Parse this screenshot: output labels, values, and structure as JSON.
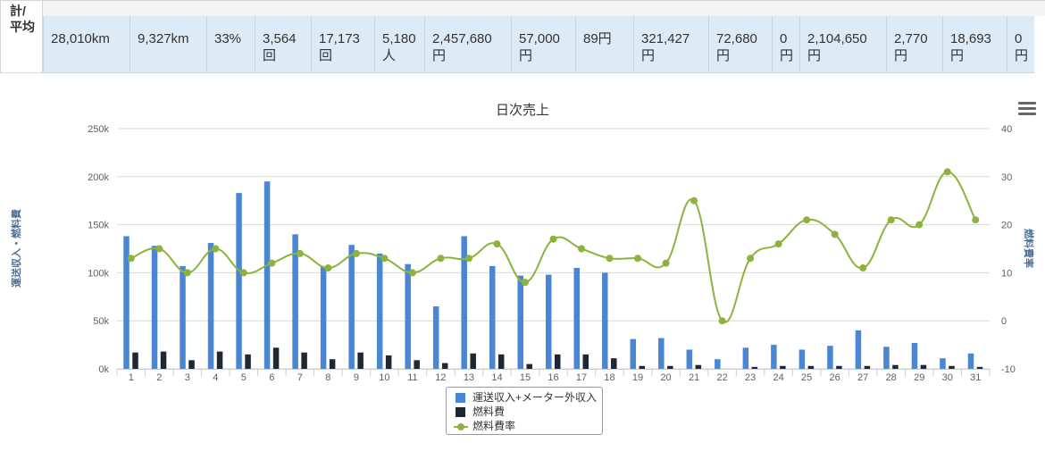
{
  "summary": {
    "row_label": "計/\n平均",
    "cells": [
      {
        "text": "28,010km",
        "w": 97
      },
      {
        "text": "9,327km",
        "w": 86
      },
      {
        "text": "33%",
        "w": 54
      },
      {
        "text": "3,564\n回",
        "w": 63
      },
      {
        "text": "17,173\n回",
        "w": 71
      },
      {
        "text": "5,180\n人",
        "w": 56
      },
      {
        "text": "2,457,680\n円",
        "w": 97
      },
      {
        "text": "57,000\n円",
        "w": 72
      },
      {
        "text": "89円",
        "w": 65
      },
      {
        "text": "321,427\n円",
        "w": 84
      },
      {
        "text": "72,680\n円",
        "w": 71
      },
      {
        "text": "0\n円",
        "w": 31
      },
      {
        "text": "2,104,650\n円",
        "w": 97
      },
      {
        "text": "2,770\n円",
        "w": 63
      },
      {
        "text": "18,693\n円",
        "w": 72
      },
      {
        "text": "0\n円",
        "w": 31
      }
    ]
  },
  "chart_data": {
    "type": "bar",
    "title": "日次売上",
    "xlabel": "",
    "ylabel": "運送収入・燃料費",
    "y2label": "燃料費率",
    "categories": [
      "1",
      "2",
      "3",
      "4",
      "5",
      "6",
      "7",
      "8",
      "9",
      "10",
      "11",
      "12",
      "13",
      "14",
      "15",
      "16",
      "17",
      "18",
      "19",
      "20",
      "21",
      "22",
      "23",
      "24",
      "25",
      "26",
      "27",
      "28",
      "29",
      "30",
      "31"
    ],
    "ylim": [
      0,
      250000
    ],
    "y2lim": [
      -10,
      40
    ],
    "yticks": [
      "0k",
      "50k",
      "100k",
      "150k",
      "200k",
      "250k"
    ],
    "y2ticks": [
      "-10",
      "0",
      "10",
      "20",
      "30",
      "40"
    ],
    "series": [
      {
        "name": "運送収入+メーター外収入",
        "kind": "bar",
        "axis": "left",
        "color": "#4a86d4",
        "values": [
          138000,
          128000,
          107000,
          131000,
          183000,
          195000,
          140000,
          106000,
          129000,
          120000,
          109000,
          65000,
          138000,
          107000,
          97000,
          98000,
          105000,
          100000,
          31000,
          32000,
          20000,
          10000,
          22000,
          25000,
          20000,
          24000,
          40000,
          23000,
          27000,
          11000,
          16000
        ]
      },
      {
        "name": "燃料費",
        "kind": "bar",
        "axis": "left",
        "color": "#1e2834",
        "values": [
          17000,
          18000,
          9000,
          18000,
          15000,
          22000,
          17000,
          10000,
          17000,
          14000,
          9000,
          6000,
          16000,
          15000,
          5000,
          15000,
          15000,
          11000,
          3000,
          3000,
          4000,
          0,
          2000,
          3000,
          3000,
          3000,
          3000,
          4000,
          4000,
          3000,
          2000
        ]
      },
      {
        "name": "燃料費率",
        "kind": "line",
        "axis": "right",
        "color": "#8cb33e",
        "values": [
          13,
          15,
          10,
          15,
          10,
          12,
          14,
          11,
          14,
          13,
          10,
          13,
          13,
          16,
          8,
          17,
          15,
          13,
          13,
          12,
          25,
          0,
          13,
          16,
          21,
          18,
          11,
          21,
          20,
          31,
          21
        ]
      }
    ],
    "grid": true,
    "legend_position": "bottom"
  }
}
